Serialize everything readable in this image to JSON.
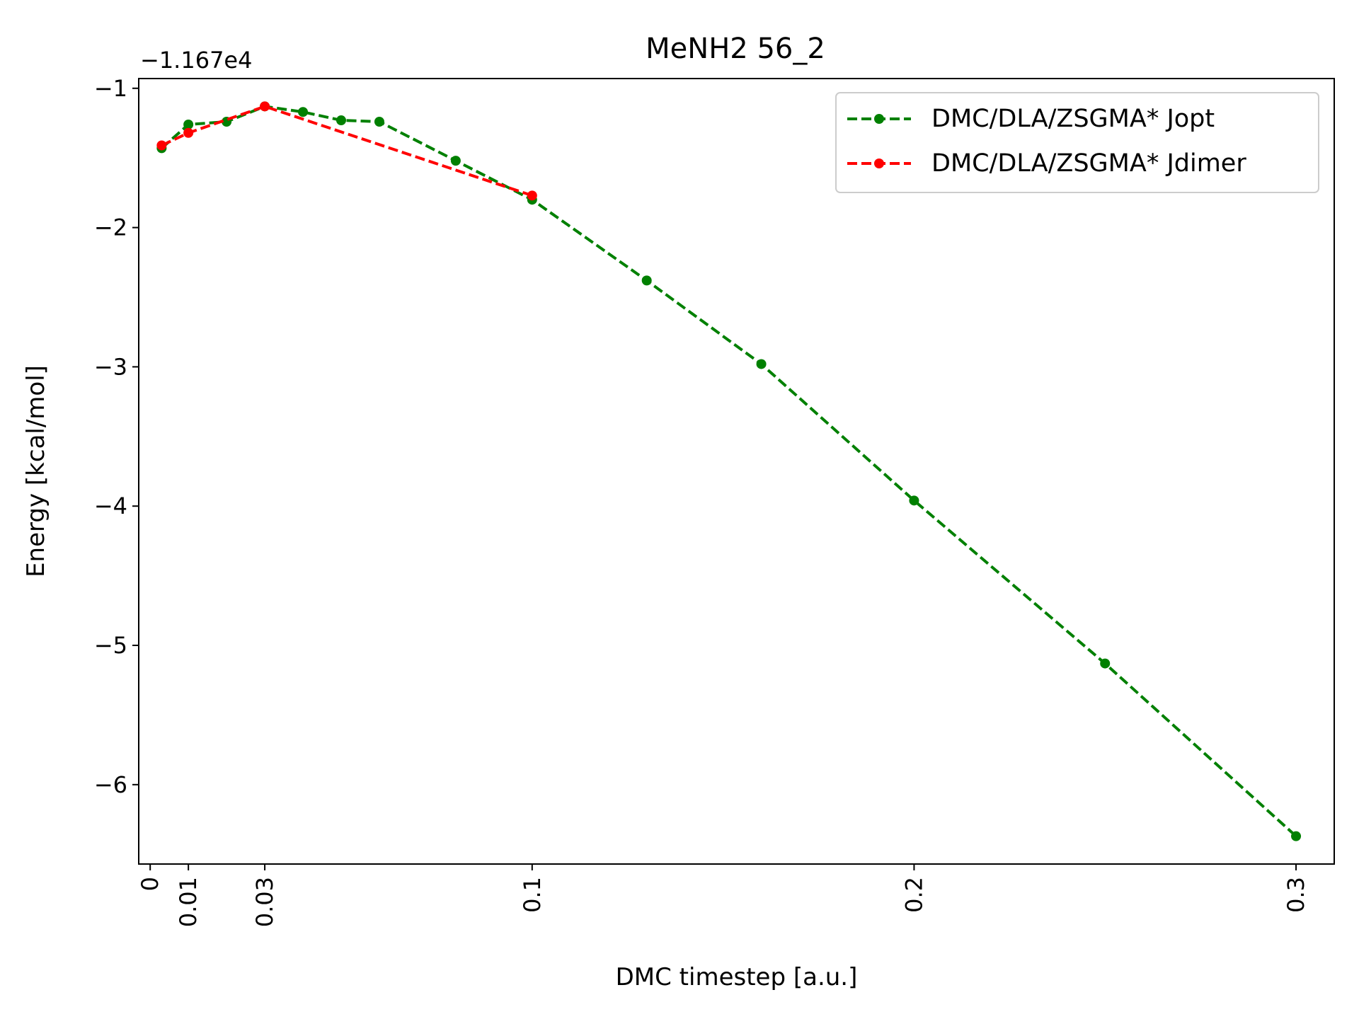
{
  "chart_data": {
    "type": "line",
    "title": "MeNH2 56_2",
    "xlabel": "DMC timestep [a.u.]",
    "ylabel": "Energy [kcal/mol]",
    "y_offset_label": "−1.167e4",
    "y_offset": -11670,
    "xlim": [
      -0.003,
      0.31
    ],
    "ylim": [
      -6.57,
      -0.93
    ],
    "x_ticks": [
      {
        "value": 0,
        "label": "0"
      },
      {
        "value": 0.01,
        "label": "0.01"
      },
      {
        "value": 0.03,
        "label": "0.03"
      },
      {
        "value": 0.1,
        "label": "0.1"
      },
      {
        "value": 0.2,
        "label": "0.2"
      },
      {
        "value": 0.3,
        "label": "0.3"
      }
    ],
    "y_ticks": [
      {
        "value": -1,
        "label": "−1"
      },
      {
        "value": -2,
        "label": "−2"
      },
      {
        "value": -3,
        "label": "−3"
      },
      {
        "value": -4,
        "label": "−4"
      },
      {
        "value": -5,
        "label": "−5"
      },
      {
        "value": -6,
        "label": "−6"
      }
    ],
    "grid": false,
    "legend_position": "top-right",
    "series": [
      {
        "name": "DMC/DLA/ZSGMA* Jopt",
        "color": "#008000",
        "line_style": "dashed",
        "marker": "circle",
        "x": [
          0.003,
          0.01,
          0.02,
          0.03,
          0.04,
          0.05,
          0.06,
          0.08,
          0.1,
          0.13,
          0.16,
          0.2,
          0.25,
          0.3
        ],
        "y": [
          -1.43,
          -1.26,
          -1.24,
          -1.13,
          -1.17,
          -1.23,
          -1.24,
          -1.52,
          -1.8,
          -2.38,
          -2.98,
          -3.96,
          -5.13,
          -6.37
        ]
      },
      {
        "name": "DMC/DLA/ZSGMA* Jdimer",
        "color": "#ff0000",
        "line_style": "dashed",
        "marker": "circle",
        "x": [
          0.003,
          0.01,
          0.03,
          0.1
        ],
        "y": [
          -1.41,
          -1.32,
          -1.13,
          -1.77
        ]
      }
    ]
  }
}
